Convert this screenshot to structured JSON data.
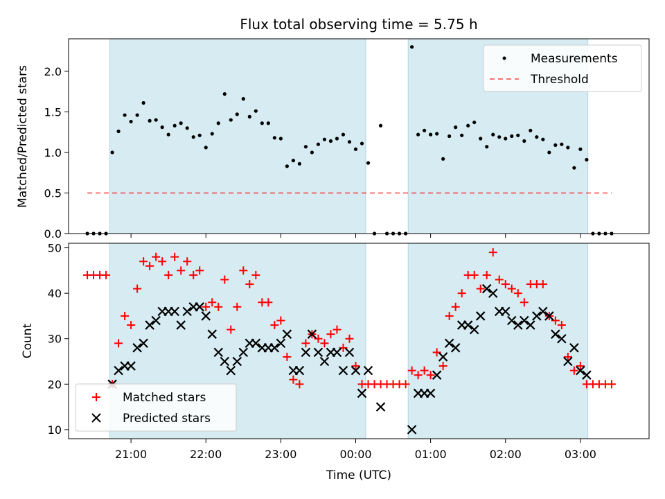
{
  "figure": {
    "title": "Flux total observing time = 5.75 h"
  },
  "chart_data": [
    {
      "type": "scatter",
      "panel": "top",
      "ylabel": "Matched/Predicted stars",
      "xlabel": "",
      "ylim": [
        0,
        2.4
      ],
      "yticks": [
        0.0,
        0.5,
        1.0,
        1.5,
        2.0
      ],
      "ytick_labels": [
        "0.0",
        "0.5",
        "1.0",
        "1.5",
        "2.0"
      ],
      "grid": false,
      "legend_position": "top-right",
      "legend": [
        "Measurements",
        "Threshold"
      ],
      "threshold": 0.5,
      "threshold_x_range": [
        "20:25",
        "03:25"
      ],
      "shaded_intervals": [
        [
          "20:43",
          "00:08"
        ],
        [
          "00:42",
          "03:06"
        ]
      ],
      "series": [
        {
          "name": "Measurements",
          "color": "#000000",
          "points": [
            [
              "20:25",
              0
            ],
            [
              "20:30",
              0
            ],
            [
              "20:35",
              0
            ],
            [
              "20:40",
              0
            ],
            [
              "20:45",
              1.0
            ],
            [
              "20:50",
              1.26
            ],
            [
              "20:55",
              1.46
            ],
            [
              "21:00",
              1.38
            ],
            [
              "21:05",
              1.46
            ],
            [
              "21:10",
              1.61
            ],
            [
              "21:15",
              1.39
            ],
            [
              "21:20",
              1.4
            ],
            [
              "21:25",
              1.31
            ],
            [
              "21:30",
              1.22
            ],
            [
              "21:35",
              1.33
            ],
            [
              "21:40",
              1.36
            ],
            [
              "21:45",
              1.3
            ],
            [
              "21:50",
              1.19
            ],
            [
              "21:55",
              1.21
            ],
            [
              "22:00",
              1.06
            ],
            [
              "22:05",
              1.23
            ],
            [
              "22:10",
              1.36
            ],
            [
              "22:15",
              1.72
            ],
            [
              "22:20",
              1.4
            ],
            [
              "22:25",
              1.47
            ],
            [
              "22:30",
              1.66
            ],
            [
              "22:35",
              1.44
            ],
            [
              "22:40",
              1.51
            ],
            [
              "22:45",
              1.36
            ],
            [
              "22:50",
              1.36
            ],
            [
              "22:55",
              1.18
            ],
            [
              "23:00",
              1.17
            ],
            [
              "23:05",
              0.83
            ],
            [
              "23:10",
              0.9
            ],
            [
              "23:15",
              0.86
            ],
            [
              "23:20",
              1.07
            ],
            [
              "23:25",
              1.0
            ],
            [
              "23:30",
              1.1
            ],
            [
              "23:35",
              1.16
            ],
            [
              "23:40",
              1.14
            ],
            [
              "23:45",
              1.17
            ],
            [
              "23:50",
              1.22
            ],
            [
              "23:55",
              1.13
            ],
            [
              "00:00",
              1.04
            ],
            [
              "00:05",
              1.11
            ],
            [
              "00:10",
              0.87
            ],
            [
              "00:15",
              0
            ],
            [
              "00:20",
              1.33
            ],
            [
              "00:25",
              0
            ],
            [
              "00:30",
              0
            ],
            [
              "00:35",
              0
            ],
            [
              "00:40",
              0
            ],
            [
              "00:45",
              2.3
            ],
            [
              "00:50",
              1.22
            ],
            [
              "00:55",
              1.27
            ],
            [
              "01:00",
              1.22
            ],
            [
              "01:05",
              1.23
            ],
            [
              "01:10",
              0.92
            ],
            [
              "01:15",
              1.2
            ],
            [
              "01:20",
              1.31
            ],
            [
              "01:25",
              1.21
            ],
            [
              "01:30",
              1.33
            ],
            [
              "01:35",
              1.37
            ],
            [
              "01:40",
              1.17
            ],
            [
              "01:45",
              1.07
            ],
            [
              "01:50",
              1.22
            ],
            [
              "01:55",
              1.19
            ],
            [
              "02:00",
              1.17
            ],
            [
              "02:05",
              1.2
            ],
            [
              "02:10",
              1.21
            ],
            [
              "02:15",
              1.14
            ],
            [
              "02:20",
              1.27
            ],
            [
              "02:25",
              1.19
            ],
            [
              "02:30",
              1.16
            ],
            [
              "02:35",
              1.0
            ],
            [
              "02:40",
              1.09
            ],
            [
              "02:45",
              1.1
            ],
            [
              "02:50",
              1.06
            ],
            [
              "02:55",
              0.81
            ],
            [
              "03:00",
              1.04
            ],
            [
              "03:05",
              0.91
            ],
            [
              "03:10",
              0
            ],
            [
              "03:15",
              0
            ],
            [
              "03:20",
              0
            ],
            [
              "03:25",
              0
            ]
          ]
        }
      ]
    },
    {
      "type": "scatter",
      "panel": "bottom",
      "xlabel": "Time (UTC)",
      "ylabel": "Count",
      "ylim": [
        8,
        51
      ],
      "yticks": [
        10,
        20,
        30,
        40,
        50
      ],
      "ytick_labels": [
        "10",
        "20",
        "30",
        "40",
        "50"
      ],
      "x_range": [
        "20:10",
        "03:55"
      ],
      "xticks": [
        "21:00",
        "22:00",
        "23:00",
        "00:00",
        "01:00",
        "02:00",
        "03:00"
      ],
      "xtick_labels": [
        "21:00",
        "22:00",
        "23:00",
        "00:00",
        "01:00",
        "02:00",
        "03:00"
      ],
      "grid": false,
      "legend_position": "bottom-left",
      "legend": [
        "Matched stars",
        "Predicted stars"
      ],
      "shaded_intervals": [
        [
          "20:43",
          "00:08"
        ],
        [
          "00:42",
          "03:06"
        ]
      ],
      "series": [
        {
          "name": "Matched stars",
          "marker": "+",
          "color": "#ff0000",
          "points": [
            [
              "20:25",
              44
            ],
            [
              "20:30",
              44
            ],
            [
              "20:35",
              44
            ],
            [
              "20:40",
              44
            ],
            [
              "20:45",
              20
            ],
            [
              "20:50",
              29
            ],
            [
              "20:55",
              35
            ],
            [
              "21:00",
              33
            ],
            [
              "21:05",
              41
            ],
            [
              "21:10",
              47
            ],
            [
              "21:15",
              46
            ],
            [
              "21:20",
              48
            ],
            [
              "21:25",
              47
            ],
            [
              "21:30",
              44
            ],
            [
              "21:35",
              48
            ],
            [
              "21:40",
              45
            ],
            [
              "21:45",
              47
            ],
            [
              "21:50",
              44
            ],
            [
              "21:55",
              45
            ],
            [
              "22:00",
              37
            ],
            [
              "22:05",
              38
            ],
            [
              "22:10",
              37
            ],
            [
              "22:15",
              43
            ],
            [
              "22:20",
              32
            ],
            [
              "22:25",
              37
            ],
            [
              "22:30",
              45
            ],
            [
              "22:35",
              42
            ],
            [
              "22:40",
              44
            ],
            [
              "22:45",
              38
            ],
            [
              "22:50",
              38
            ],
            [
              "22:55",
              33
            ],
            [
              "23:00",
              34
            ],
            [
              "23:05",
              26
            ],
            [
              "23:10",
              21
            ],
            [
              "23:15",
              20
            ],
            [
              "23:20",
              29
            ],
            [
              "23:25",
              31
            ],
            [
              "23:30",
              30
            ],
            [
              "23:35",
              29
            ],
            [
              "23:40",
              31
            ],
            [
              "23:45",
              32
            ],
            [
              "23:50",
              28
            ],
            [
              "23:55",
              30
            ],
            [
              "00:00",
              24
            ],
            [
              "00:05",
              20
            ],
            [
              "00:10",
              20
            ],
            [
              "00:15",
              20
            ],
            [
              "00:20",
              20
            ],
            [
              "00:25",
              20
            ],
            [
              "00:30",
              20
            ],
            [
              "00:35",
              20
            ],
            [
              "00:40",
              20
            ],
            [
              "00:45",
              23
            ],
            [
              "00:50",
              22
            ],
            [
              "00:55",
              23
            ],
            [
              "01:00",
              22
            ],
            [
              "01:05",
              27
            ],
            [
              "01:10",
              24
            ],
            [
              "01:15",
              35
            ],
            [
              "01:20",
              37
            ],
            [
              "01:25",
              40
            ],
            [
              "01:30",
              44
            ],
            [
              "01:35",
              44
            ],
            [
              "01:40",
              41
            ],
            [
              "01:45",
              44
            ],
            [
              "01:50",
              49
            ],
            [
              "01:55",
              43
            ],
            [
              "02:00",
              42
            ],
            [
              "02:05",
              41
            ],
            [
              "02:10",
              40
            ],
            [
              "02:15",
              38
            ],
            [
              "02:20",
              42
            ],
            [
              "02:25",
              42
            ],
            [
              "02:30",
              42
            ],
            [
              "02:35",
              35
            ],
            [
              "02:40",
              34
            ],
            [
              "02:45",
              33
            ],
            [
              "02:50",
              26
            ],
            [
              "02:55",
              23
            ],
            [
              "03:00",
              24
            ],
            [
              "03:05",
              20
            ],
            [
              "03:10",
              20
            ],
            [
              "03:15",
              20
            ],
            [
              "03:20",
              20
            ],
            [
              "03:25",
              20
            ]
          ]
        },
        {
          "name": "Predicted stars",
          "marker": "x",
          "color": "#000000",
          "points": [
            [
              "20:45",
              20
            ],
            [
              "20:50",
              23
            ],
            [
              "20:55",
              24
            ],
            [
              "21:00",
              24
            ],
            [
              "21:05",
              28
            ],
            [
              "21:10",
              29
            ],
            [
              "21:15",
              33
            ],
            [
              "21:20",
              34
            ],
            [
              "21:25",
              36
            ],
            [
              "21:30",
              36
            ],
            [
              "21:35",
              36
            ],
            [
              "21:40",
              33
            ],
            [
              "21:45",
              36
            ],
            [
              "21:50",
              37
            ],
            [
              "21:55",
              37
            ],
            [
              "22:00",
              35
            ],
            [
              "22:05",
              31
            ],
            [
              "22:10",
              27
            ],
            [
              "22:15",
              25
            ],
            [
              "22:20",
              23
            ],
            [
              "22:25",
              25
            ],
            [
              "22:30",
              27
            ],
            [
              "22:35",
              29
            ],
            [
              "22:40",
              29
            ],
            [
              "22:45",
              28
            ],
            [
              "22:50",
              28
            ],
            [
              "22:55",
              28
            ],
            [
              "23:00",
              29
            ],
            [
              "23:05",
              31
            ],
            [
              "23:10",
              23
            ],
            [
              "23:15",
              23
            ],
            [
              "23:20",
              27
            ],
            [
              "23:25",
              31
            ],
            [
              "23:30",
              27
            ],
            [
              "23:35",
              25
            ],
            [
              "23:40",
              27
            ],
            [
              "23:45",
              27
            ],
            [
              "23:50",
              23
            ],
            [
              "23:55",
              27
            ],
            [
              "00:00",
              23
            ],
            [
              "00:05",
              18
            ],
            [
              "00:10",
              23
            ],
            [
              "00:20",
              15
            ],
            [
              "00:45",
              10
            ],
            [
              "00:50",
              18
            ],
            [
              "00:55",
              18
            ],
            [
              "01:00",
              18
            ],
            [
              "01:05",
              22
            ],
            [
              "01:10",
              26
            ],
            [
              "01:15",
              29
            ],
            [
              "01:20",
              28
            ],
            [
              "01:25",
              33
            ],
            [
              "01:30",
              33
            ],
            [
              "01:35",
              32
            ],
            [
              "01:40",
              35
            ],
            [
              "01:45",
              41
            ],
            [
              "01:50",
              40
            ],
            [
              "01:55",
              36
            ],
            [
              "02:00",
              36
            ],
            [
              "02:05",
              34
            ],
            [
              "02:10",
              33
            ],
            [
              "02:15",
              34
            ],
            [
              "02:20",
              33
            ],
            [
              "02:25",
              35
            ],
            [
              "02:30",
              36
            ],
            [
              "02:35",
              35
            ],
            [
              "02:40",
              31
            ],
            [
              "02:45",
              30
            ],
            [
              "02:50",
              25
            ],
            [
              "02:55",
              28
            ],
            [
              "03:00",
              23
            ],
            [
              "03:05",
              22
            ]
          ]
        }
      ]
    }
  ]
}
